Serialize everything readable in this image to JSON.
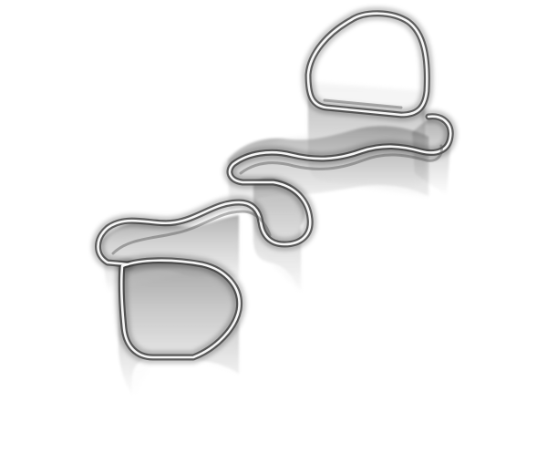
{
  "image": {
    "subject": "translucent-extruded-loop-sculpture",
    "background_color": "#ffffff",
    "wall_color": "#000000",
    "edge_color": "#2b2b2b",
    "glow_color": "#ffffff"
  }
}
